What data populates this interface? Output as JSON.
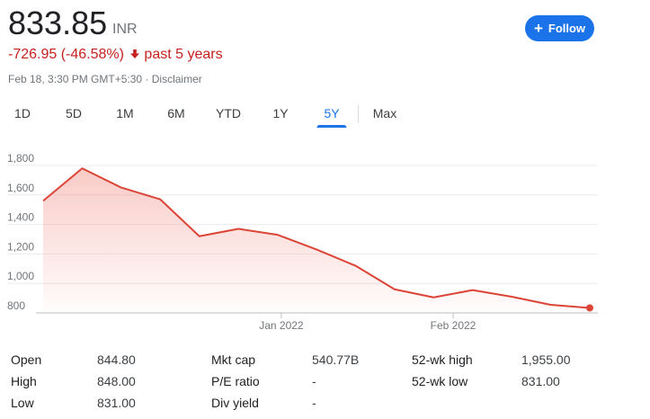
{
  "header": {
    "price": "833.85",
    "currency": "INR",
    "change_text": "-726.95 (-46.58%)",
    "change_period": "past 5 years",
    "timestamp": "Feb 18, 3:30 PM GMT+5:30 · Disclaimer",
    "follow_label": "Follow",
    "colors": {
      "negative": "#c5221f",
      "accent": "#1a73e8"
    }
  },
  "tabs": [
    {
      "label": "1D",
      "active": false
    },
    {
      "label": "5D",
      "active": false
    },
    {
      "label": "1M",
      "active": false
    },
    {
      "label": "6M",
      "active": false
    },
    {
      "label": "YTD",
      "active": false
    },
    {
      "label": "1Y",
      "active": false
    },
    {
      "label": "5Y",
      "active": true
    },
    {
      "label": "Max",
      "active": false
    }
  ],
  "chart_data": {
    "type": "area",
    "y_ticks": [
      "1,800",
      "1,600",
      "1,400",
      "1,200",
      "1,000",
      "800"
    ],
    "y_tick_values": [
      1800,
      1600,
      1400,
      1200,
      1000,
      800
    ],
    "ylim": [
      800,
      1800
    ],
    "x_tick_labels": [
      "Jan 2022",
      "Feb 2022"
    ],
    "x_tick_index": [
      6.1,
      10.5
    ],
    "x": [
      0,
      1,
      2,
      3,
      4,
      5,
      6,
      7,
      8,
      9,
      10,
      11,
      12,
      13,
      14
    ],
    "values": [
      1560,
      1780,
      1650,
      1570,
      1320,
      1370,
      1330,
      1230,
      1120,
      960,
      905,
      955,
      910,
      855,
      833.85
    ],
    "line_color": "#db4437",
    "fill_color": "#f28b82"
  },
  "stats": {
    "col1": [
      {
        "label": "Open",
        "value": "844.80"
      },
      {
        "label": "High",
        "value": "848.00"
      },
      {
        "label": "Low",
        "value": "831.00"
      }
    ],
    "col2": [
      {
        "label": "Mkt cap",
        "value": "540.77B"
      },
      {
        "label": "P/E ratio",
        "value": "-"
      },
      {
        "label": "Div yield",
        "value": "-"
      }
    ],
    "col3": [
      {
        "label": "52-wk high",
        "value": "1,955.00"
      },
      {
        "label": "52-wk low",
        "value": "831.00"
      }
    ]
  }
}
